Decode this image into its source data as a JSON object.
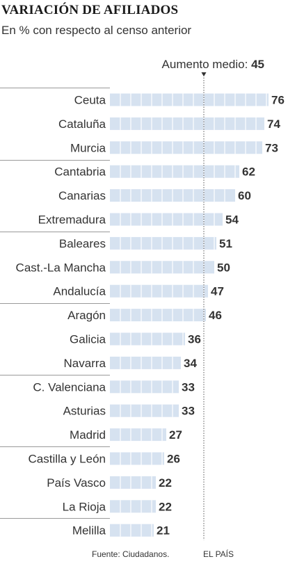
{
  "title": "VARIACIÓN DE AFILIADOS",
  "subtitle": "En % con respecto al censo anterior",
  "average": {
    "label": "Aumento medio:",
    "value": "45"
  },
  "source": "Fuente: Ciudadanos.",
  "brand": "EL PAÍS",
  "colors": {
    "bar": "#d6e2f0",
    "bar_seg": "#ffffff",
    "text": "#333333",
    "rule": "#999999"
  },
  "chart_data": {
    "type": "bar",
    "orientation": "horizontal",
    "title": "VARIACIÓN DE AFILIADOS",
    "subtitle": "En % con respecto al censo anterior",
    "xlim": [
      0,
      76
    ],
    "average_line": 45,
    "categories": [
      "Ceuta",
      "Cataluña",
      "Murcia",
      "Cantabria",
      "Canarias",
      "Extremadura",
      "Baleares",
      "Cast.-La Mancha",
      "Andalucía",
      "Aragón",
      "Galicia",
      "Navarra",
      "C. Valenciana",
      "Asturias",
      "Madrid",
      "Castilla y León",
      "País Vasco",
      "La Rioja",
      "Melilla"
    ],
    "values": [
      76,
      74,
      73,
      62,
      60,
      54,
      51,
      50,
      47,
      46,
      36,
      34,
      33,
      33,
      27,
      26,
      22,
      22,
      21
    ],
    "group_rules_before_index": [
      0,
      3,
      6,
      9,
      12,
      15,
      18
    ]
  }
}
